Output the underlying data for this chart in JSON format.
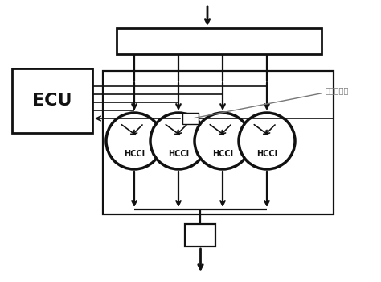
{
  "bg_color": "#ffffff",
  "line_color": "#111111",
  "text_color": "#111111",
  "sensor_color": "#777777",
  "ecu_label": "ECU",
  "hcci_label": "HCCI",
  "sensor_label": "爆震传感器",
  "fig_width": 4.74,
  "fig_height": 3.5,
  "dpi": 100
}
